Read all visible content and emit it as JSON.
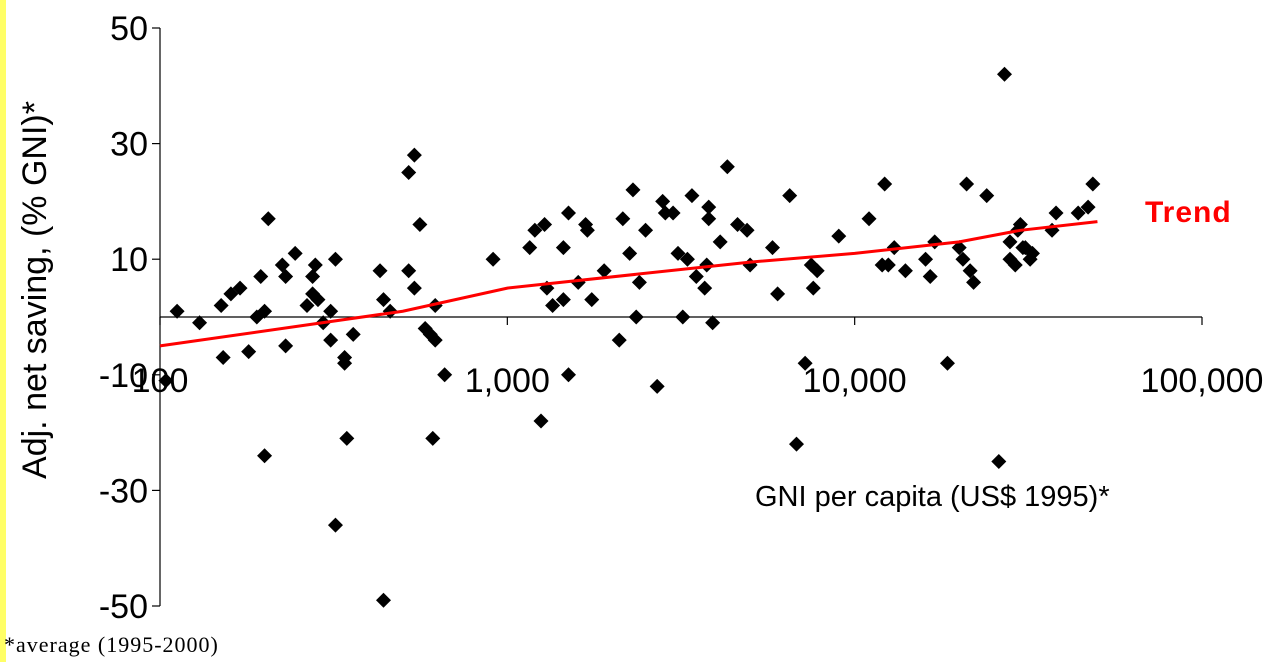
{
  "chart_data": {
    "type": "scatter",
    "title": "",
    "xlabel": "GNI per capita (US$ 1995)*",
    "ylabel": "Adj. net saving, (% GNI)*",
    "x_scale": "log",
    "xlim": [
      100,
      100000
    ],
    "ylim": [
      -50,
      50
    ],
    "x_ticks": [
      {
        "value": 100,
        "label": "100"
      },
      {
        "value": 1000,
        "label": "1,000"
      },
      {
        "value": 10000,
        "label": "10,000"
      },
      {
        "value": 100000,
        "label": "100,000"
      }
    ],
    "y_ticks": [
      {
        "value": 50,
        "label": "50"
      },
      {
        "value": 30,
        "label": "30"
      },
      {
        "value": 10,
        "label": "10"
      },
      {
        "value": -10,
        "label": "-10"
      },
      {
        "value": -30,
        "label": "-30"
      },
      {
        "value": -50,
        "label": "-50"
      }
    ],
    "grid": false,
    "marker_color": "#000000",
    "series": [
      {
        "marker": "diamond",
        "points": [
          [
            104,
            -11
          ],
          [
            112,
            1
          ],
          [
            130,
            -1
          ],
          [
            150,
            2
          ],
          [
            152,
            -7
          ],
          [
            160,
            4
          ],
          [
            170,
            5
          ],
          [
            180,
            -6
          ],
          [
            190,
            0
          ],
          [
            195,
            7
          ],
          [
            200,
            1
          ],
          [
            200,
            -24
          ],
          [
            205,
            17
          ],
          [
            225,
            9
          ],
          [
            230,
            -5
          ],
          [
            230,
            7
          ],
          [
            245,
            11
          ],
          [
            265,
            2
          ],
          [
            275,
            4
          ],
          [
            275,
            7
          ],
          [
            280,
            9
          ],
          [
            285,
            3
          ],
          [
            295,
            -1
          ],
          [
            310,
            1
          ],
          [
            310,
            -4
          ],
          [
            320,
            10
          ],
          [
            320,
            -36
          ],
          [
            340,
            -7
          ],
          [
            340,
            -8
          ],
          [
            345,
            -21
          ],
          [
            360,
            -3
          ],
          [
            430,
            8
          ],
          [
            440,
            -49
          ],
          [
            440,
            3
          ],
          [
            460,
            1
          ],
          [
            520,
            8
          ],
          [
            520,
            25
          ],
          [
            540,
            5
          ],
          [
            540,
            28
          ],
          [
            560,
            16
          ],
          [
            580,
            -2
          ],
          [
            600,
            -3
          ],
          [
            620,
            -4
          ],
          [
            610,
            -21
          ],
          [
            620,
            2
          ],
          [
            660,
            -10
          ],
          [
            910,
            10
          ],
          [
            1160,
            12
          ],
          [
            1200,
            15
          ],
          [
            1250,
            -18
          ],
          [
            1280,
            16
          ],
          [
            1300,
            5
          ],
          [
            1350,
            2
          ],
          [
            1450,
            3
          ],
          [
            1450,
            12
          ],
          [
            1500,
            18
          ],
          [
            1500,
            -10
          ],
          [
            1600,
            6
          ],
          [
            1680,
            16
          ],
          [
            1700,
            15
          ],
          [
            1750,
            3
          ],
          [
            1900,
            8
          ],
          [
            2100,
            -4
          ],
          [
            2150,
            17
          ],
          [
            2250,
            11
          ],
          [
            2300,
            22
          ],
          [
            2350,
            0
          ],
          [
            2400,
            6
          ],
          [
            2500,
            15
          ],
          [
            2700,
            -12
          ],
          [
            2800,
            20
          ],
          [
            2850,
            18
          ],
          [
            3000,
            18
          ],
          [
            3100,
            11
          ],
          [
            3200,
            0
          ],
          [
            3300,
            10
          ],
          [
            3400,
            21
          ],
          [
            3500,
            7
          ],
          [
            3700,
            5
          ],
          [
            3750,
            9
          ],
          [
            3800,
            19
          ],
          [
            3800,
            17
          ],
          [
            3900,
            -1
          ],
          [
            4100,
            13
          ],
          [
            4300,
            26
          ],
          [
            4600,
            16
          ],
          [
            4900,
            15
          ],
          [
            5000,
            9
          ],
          [
            5800,
            12
          ],
          [
            6000,
            4
          ],
          [
            6500,
            21
          ],
          [
            6800,
            -22
          ],
          [
            7200,
            -8
          ],
          [
            7500,
            9
          ],
          [
            7600,
            5
          ],
          [
            7800,
            8
          ],
          [
            9000,
            14
          ],
          [
            11000,
            17
          ],
          [
            12000,
            9
          ],
          [
            12200,
            23
          ],
          [
            12500,
            9
          ],
          [
            13000,
            12
          ],
          [
            14000,
            8
          ],
          [
            16000,
            10
          ],
          [
            16500,
            7
          ],
          [
            17000,
            13
          ],
          [
            18500,
            -8
          ],
          [
            20000,
            12
          ],
          [
            20500,
            10
          ],
          [
            21000,
            23
          ],
          [
            21500,
            8
          ],
          [
            22000,
            6
          ],
          [
            24000,
            21
          ],
          [
            26000,
            -25
          ],
          [
            27000,
            42
          ],
          [
            28000,
            13
          ],
          [
            28000,
            10
          ],
          [
            29000,
            9
          ],
          [
            29500,
            15
          ],
          [
            30000,
            16
          ],
          [
            30500,
            12
          ],
          [
            31000,
            12
          ],
          [
            32000,
            10
          ],
          [
            32500,
            11
          ],
          [
            37000,
            15
          ],
          [
            38000,
            18
          ],
          [
            44000,
            18
          ],
          [
            47000,
            19
          ],
          [
            48500,
            23
          ]
        ]
      }
    ],
    "trend": {
      "name": "Trend",
      "color": "#ff0000",
      "points": [
        [
          100,
          -5
        ],
        [
          500,
          1
        ],
        [
          1000,
          5
        ],
        [
          5000,
          9.5
        ],
        [
          10000,
          11
        ],
        [
          20000,
          13
        ],
        [
          30000,
          15
        ],
        [
          50000,
          16.5
        ]
      ]
    },
    "footnote": "*average (1995-2000)"
  }
}
